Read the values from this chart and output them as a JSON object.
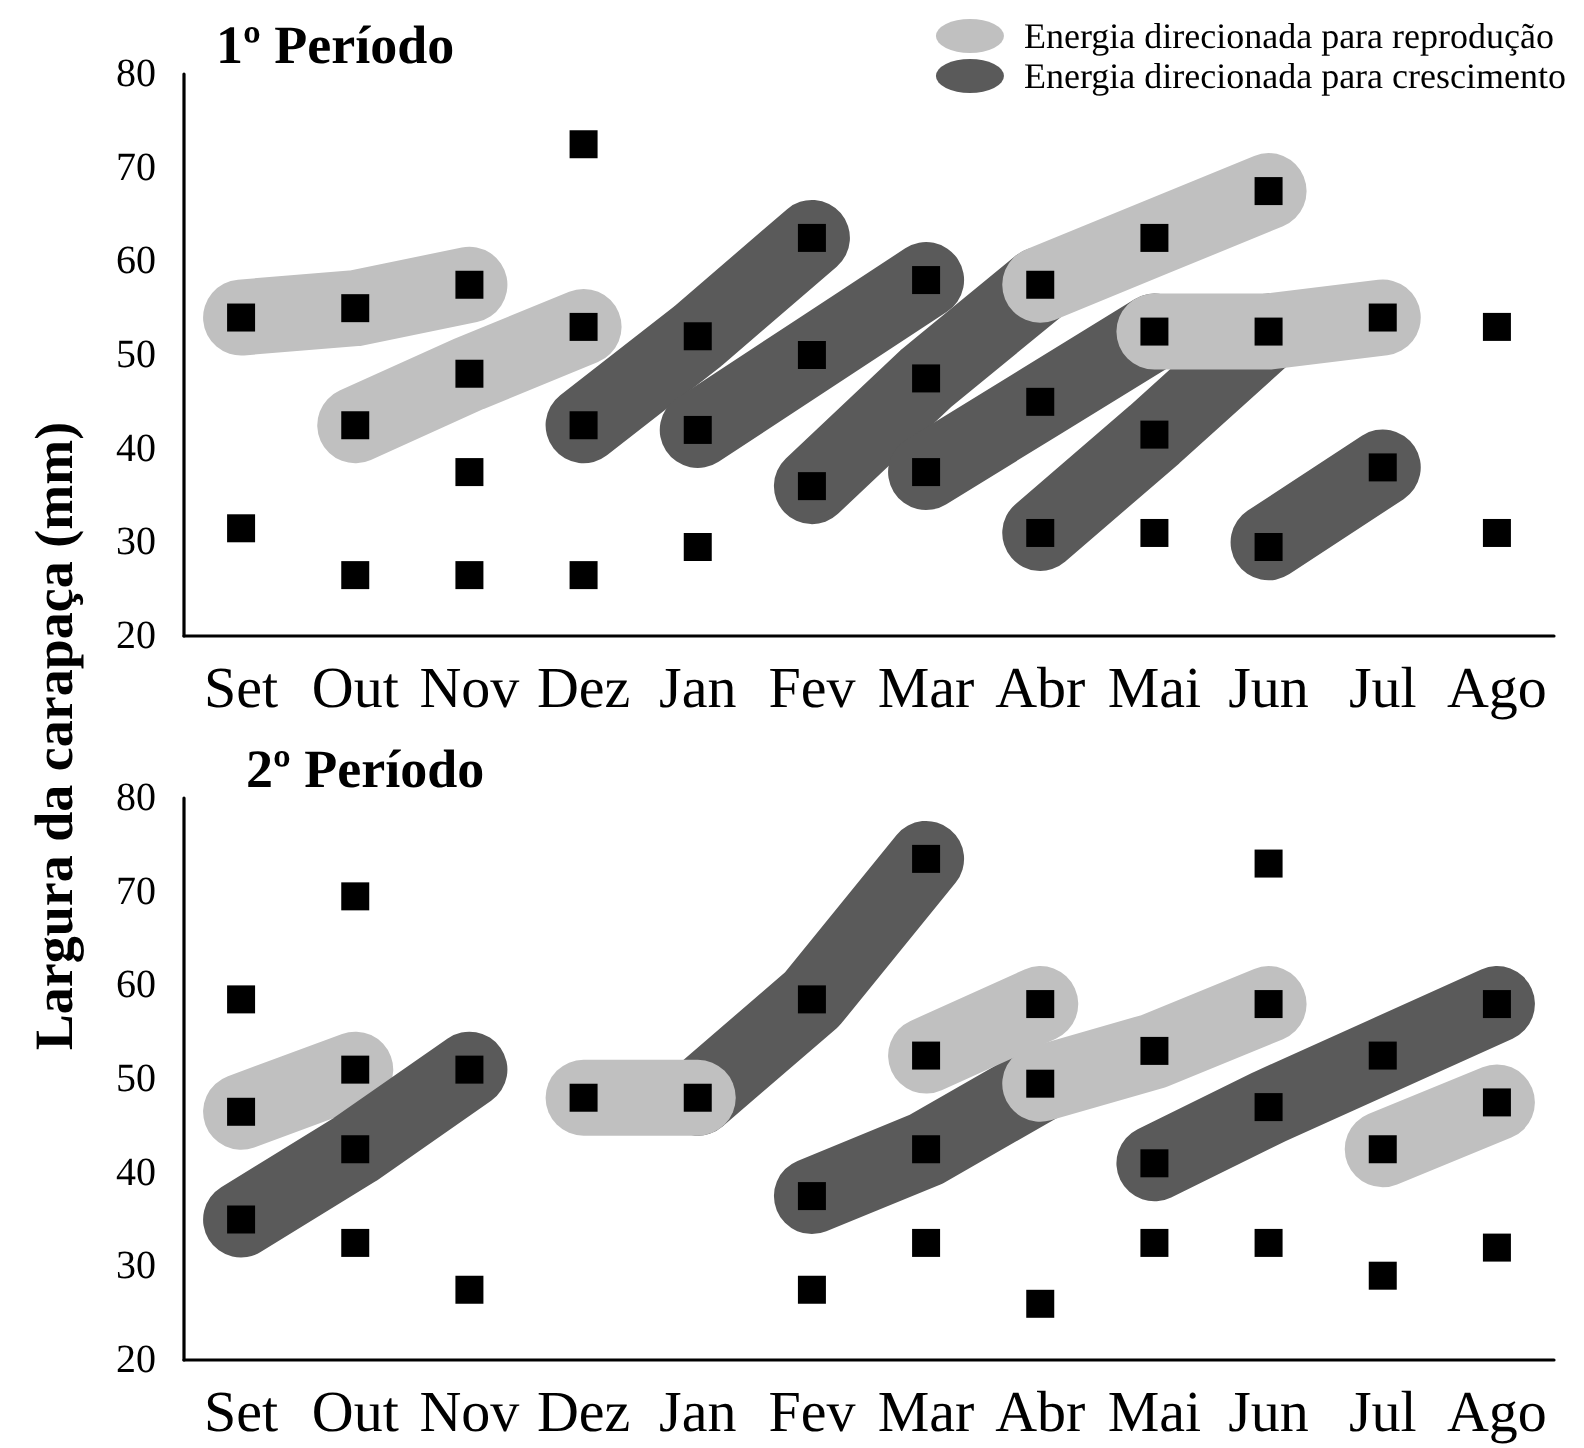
{
  "chart_data": [
    {
      "type": "scatter",
      "title": "1º Período",
      "ylabel": "Largura da carapaça (mm)",
      "categories": [
        "Set",
        "Out",
        "Nov",
        "Dez",
        "Jan",
        "Fev",
        "Mar",
        "Abr",
        "Mai",
        "Jun",
        "Jul",
        "Ago"
      ],
      "ylim": [
        20,
        80
      ],
      "yticks": [
        20,
        30,
        40,
        50,
        60,
        70,
        80
      ],
      "grid": false,
      "legend": "top right",
      "marker": "square",
      "line_style": "solid",
      "series": [
        {
          "type": "line",
          "marker": "none",
          "name": "Energia direcionada para reprodução",
          "color": "#c0c0c0",
          "x": [
            "Set",
            "Out",
            "Nov"
          ],
          "values": [
            54,
            55,
            57.5
          ]
        },
        {
          "type": "line",
          "marker": "none",
          "name": "Energia direcionada para crescimento",
          "color": "#5a5a5a",
          "x": [
            "Dez",
            "Jan",
            "Fev"
          ],
          "values": [
            42.5,
            52,
            62.5
          ]
        },
        {
          "type": "line",
          "marker": "none",
          "color": "#5a5a5a",
          "x": [
            "Jan",
            "Fev",
            "Mar"
          ],
          "values": [
            42,
            50,
            58
          ]
        },
        {
          "type": "line",
          "marker": "none",
          "color": "#5a5a5a",
          "x": [
            "Fev",
            "Mar",
            "Abr"
          ],
          "values": [
            36,
            47.5,
            57.5
          ]
        },
        {
          "type": "line",
          "marker": "none",
          "color": "#5a5a5a",
          "x": [
            "Mar",
            "Abr",
            "Mai"
          ],
          "values": [
            37.5,
            45,
            52.5
          ]
        },
        {
          "type": "line",
          "marker": "none",
          "color": "#5a5a5a",
          "x": [
            "Abr",
            "Mai",
            "Jun"
          ],
          "values": [
            31,
            41.5,
            52.5
          ]
        },
        {
          "type": "line",
          "marker": "none",
          "color": "#5a5a5a",
          "x": [
            "Jun",
            "Jul"
          ],
          "values": [
            30,
            38
          ]
        },
        {
          "type": "line",
          "marker": "none",
          "color": "#c0c0c0",
          "x": [
            "Out",
            "Nov",
            "Dez"
          ],
          "values": [
            42.5,
            48,
            53
          ]
        },
        {
          "type": "line",
          "marker": "none",
          "color": "#c0c0c0",
          "x": [
            "Abr",
            "Mai",
            "Jun"
          ],
          "values": [
            57.5,
            62.5,
            67.5
          ]
        },
        {
          "type": "line",
          "marker": "none",
          "color": "#c0c0c0",
          "x": [
            "Mai",
            "Jun",
            "Jul"
          ],
          "values": [
            52.5,
            52.5,
            54
          ]
        },
        {
          "color": "#000000",
          "x": [
            "Set",
            "Set",
            "Out",
            "Out",
            "Out",
            "Nov",
            "Nov",
            "Nov",
            "Nov",
            "Dez",
            "Dez",
            "Dez",
            "Dez",
            "Jan",
            "Jan",
            "Jan",
            "Fev",
            "Fev",
            "Fev",
            "Mar",
            "Mar",
            "Mar",
            "Abr",
            "Abr",
            "Abr",
            "Mai",
            "Mai",
            "Mai",
            "Mai",
            "Jun",
            "Jun",
            "Jun",
            "Jul",
            "Jul",
            "Ago",
            "Ago"
          ],
          "values": [
            54,
            31.5,
            55,
            42.5,
            26.5,
            57.5,
            48,
            37.5,
            26.5,
            72.5,
            53,
            42.5,
            26.5,
            52,
            42,
            29.5,
            62.5,
            50,
            36,
            58,
            47.5,
            37.5,
            57.5,
            45,
            31,
            62.5,
            52.5,
            41.5,
            31,
            67.5,
            52.5,
            29.5,
            54,
            38,
            53,
            31
          ]
        }
      ]
    },
    {
      "type": "scatter",
      "title": "2º Período",
      "categories": [
        "Set",
        "Out",
        "Nov",
        "Dez",
        "Jan",
        "Fev",
        "Mar",
        "Abr",
        "Mai",
        "Jun",
        "Jul",
        "Ago"
      ],
      "ylim": [
        20,
        80
      ],
      "yticks": [
        20,
        30,
        40,
        50,
        60,
        70,
        80
      ],
      "grid": false,
      "marker": "square",
      "line_style": "solid",
      "series": [
        {
          "type": "line",
          "marker": "none",
          "color": "#c0c0c0",
          "x": [
            "Set",
            "Out"
          ],
          "values": [
            46.5,
            51
          ]
        },
        {
          "type": "line",
          "marker": "none",
          "color": "#5a5a5a",
          "x": [
            "Set",
            "Out",
            "Nov"
          ],
          "values": [
            35,
            42.5,
            51
          ]
        },
        {
          "type": "line",
          "marker": "none",
          "color": "#5a5a5a",
          "x": [
            "Jan",
            "Fev",
            "Mar"
          ],
          "values": [
            48,
            58.5,
            73.5
          ]
        },
        {
          "type": "line",
          "marker": "none",
          "color": "#5a5a5a",
          "x": [
            "Fev",
            "Mar",
            "Abr"
          ],
          "values": [
            37.5,
            42.5,
            49.5
          ]
        },
        {
          "type": "line",
          "marker": "none",
          "color": "#5a5a5a",
          "x": [
            "Mai",
            "Jun",
            "Jul",
            "Ago"
          ],
          "values": [
            41,
            47,
            52.5,
            58
          ]
        },
        {
          "type": "line",
          "marker": "none",
          "color": "#c0c0c0",
          "x": [
            "Dez",
            "Jan"
          ],
          "values": [
            48,
            48
          ]
        },
        {
          "type": "line",
          "marker": "none",
          "color": "#c0c0c0",
          "x": [
            "Mar",
            "Abr"
          ],
          "values": [
            52.5,
            58
          ]
        },
        {
          "type": "line",
          "marker": "none",
          "color": "#c0c0c0",
          "x": [
            "Abr",
            "Mai",
            "Jun"
          ],
          "values": [
            49.5,
            53,
            58
          ]
        },
        {
          "type": "line",
          "marker": "none",
          "color": "#c0c0c0",
          "x": [
            "Jul",
            "Ago"
          ],
          "values": [
            42.5,
            47.5
          ]
        },
        {
          "color": "#000000",
          "x": [
            "Set",
            "Set",
            "Set",
            "Out",
            "Out",
            "Out",
            "Out",
            "Nov",
            "Nov",
            "Dez",
            "Jan",
            "Fev",
            "Fev",
            "Fev",
            "Mar",
            "Mar",
            "Mar",
            "Mar",
            "Abr",
            "Abr",
            "Abr",
            "Mai",
            "Mai",
            "Mai",
            "Jun",
            "Jun",
            "Jun",
            "Jun",
            "Jul",
            "Jul",
            "Jul",
            "Ago",
            "Ago",
            "Ago"
          ],
          "values": [
            58.5,
            46.5,
            35,
            69.5,
            51,
            42.5,
            32.5,
            51,
            27.5,
            48,
            48,
            58.5,
            37.5,
            27.5,
            73.5,
            52.5,
            42.5,
            32.5,
            58,
            49.5,
            26,
            53,
            41,
            32.5,
            73,
            58,
            47,
            32.5,
            52.5,
            42.5,
            29,
            58,
            47.5,
            32
          ]
        }
      ]
    }
  ]
}
